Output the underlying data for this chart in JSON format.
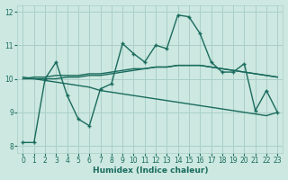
{
  "bg_color": "#cce8e0",
  "grid_color": "#aacfc8",
  "line_color": "#1a6b5e",
  "xlabel": "Humidex (Indice chaleur)",
  "xlim": [
    -0.5,
    23.5
  ],
  "ylim": [
    7.8,
    12.2
  ],
  "yticks": [
    8,
    9,
    10,
    11,
    12
  ],
  "xticks": [
    0,
    1,
    2,
    3,
    4,
    5,
    6,
    7,
    8,
    9,
    10,
    11,
    12,
    13,
    14,
    15,
    16,
    17,
    18,
    19,
    20,
    21,
    22,
    23
  ],
  "lines": [
    {
      "x": [
        0,
        1,
        2,
        3,
        4,
        5,
        6,
        7,
        8,
        9,
        10,
        11,
        12,
        13,
        14,
        15,
        16,
        17,
        18,
        19,
        20,
        21,
        22,
        23
      ],
      "y": [
        8.1,
        8.1,
        10.0,
        10.5,
        9.5,
        8.8,
        8.6,
        9.7,
        9.85,
        11.05,
        10.75,
        10.5,
        11.0,
        10.9,
        11.9,
        11.85,
        11.35,
        10.5,
        10.2,
        10.2,
        10.45,
        9.05,
        9.65,
        9.0
      ],
      "style": "-",
      "marker": "+",
      "lw": 1.0
    },
    {
      "x": [
        0,
        1,
        2,
        3,
        4,
        5,
        6,
        7,
        8,
        9,
        10,
        11,
        12,
        13,
        14,
        15,
        16,
        17,
        18,
        19,
        20,
        21,
        22,
        23
      ],
      "y": [
        10.0,
        10.0,
        10.0,
        10.0,
        10.05,
        10.05,
        10.1,
        10.1,
        10.15,
        10.2,
        10.25,
        10.3,
        10.35,
        10.35,
        10.4,
        10.4,
        10.4,
        10.35,
        10.3,
        10.25,
        10.2,
        10.15,
        10.1,
        10.05
      ],
      "style": "-",
      "marker": null,
      "lw": 1.0
    },
    {
      "x": [
        0,
        1,
        2,
        3,
        4,
        5,
        6,
        7,
        8,
        9,
        10,
        11,
        12,
        13,
        14,
        15,
        16,
        17,
        18,
        19,
        20,
        21,
        22,
        23
      ],
      "y": [
        10.0,
        10.05,
        10.05,
        10.1,
        10.1,
        10.1,
        10.15,
        10.15,
        10.2,
        10.25,
        10.3,
        10.3,
        10.35,
        10.35,
        10.4,
        10.4,
        10.4,
        10.35,
        10.3,
        10.25,
        10.2,
        10.15,
        10.1,
        10.05
      ],
      "style": "-",
      "marker": null,
      "lw": 1.0
    },
    {
      "x": [
        0,
        1,
        2,
        3,
        4,
        5,
        6,
        7,
        8,
        9,
        10,
        11,
        12,
        13,
        14,
        15,
        16,
        17,
        18,
        19,
        20,
        21,
        22,
        23
      ],
      "y": [
        10.05,
        10.0,
        9.95,
        9.9,
        9.85,
        9.8,
        9.75,
        9.65,
        9.6,
        9.55,
        9.5,
        9.45,
        9.4,
        9.35,
        9.3,
        9.25,
        9.2,
        9.15,
        9.1,
        9.05,
        9.0,
        8.95,
        8.9,
        9.0
      ],
      "style": "-",
      "marker": null,
      "lw": 1.0
    }
  ]
}
